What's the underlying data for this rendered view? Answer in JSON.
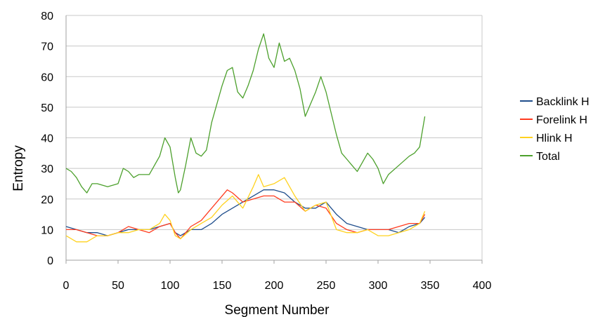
{
  "chart_data": {
    "type": "line",
    "xlabel": "Segment Number",
    "ylabel": "Entropy",
    "xlim": [
      0,
      400
    ],
    "ylim": [
      0,
      80
    ],
    "xticks": [
      "0",
      "50",
      "100",
      "150",
      "200",
      "250",
      "300",
      "350",
      "400"
    ],
    "yticks": [
      "0",
      "10",
      "20",
      "30",
      "40",
      "50",
      "60",
      "70",
      "80"
    ],
    "grid": "horizontal",
    "legend": "right",
    "series": [
      {
        "name": "Backlink H",
        "color": "#1f4e8c",
        "x": [
          0,
          10,
          20,
          30,
          40,
          50,
          60,
          70,
          80,
          90,
          100,
          105,
          110,
          120,
          130,
          140,
          150,
          160,
          170,
          180,
          190,
          200,
          210,
          220,
          230,
          240,
          250,
          260,
          270,
          280,
          290,
          300,
          310,
          320,
          330,
          340,
          345
        ],
        "y": [
          11,
          10,
          9,
          9,
          8,
          9,
          10,
          10,
          10,
          11,
          12,
          9,
          8,
          10,
          10,
          12,
          15,
          17,
          19,
          21,
          23,
          23,
          22,
          19,
          17,
          17,
          19,
          15,
          12,
          11,
          10,
          10,
          10,
          9,
          11,
          12,
          14
        ]
      },
      {
        "name": "Forelink H",
        "color": "#ff3b1f",
        "x": [
          0,
          10,
          20,
          30,
          40,
          50,
          60,
          70,
          80,
          90,
          100,
          105,
          110,
          120,
          130,
          140,
          150,
          155,
          160,
          170,
          180,
          190,
          200,
          210,
          220,
          230,
          240,
          250,
          260,
          270,
          280,
          290,
          300,
          310,
          320,
          330,
          340,
          345
        ],
        "y": [
          10,
          10,
          9,
          8,
          8,
          9,
          11,
          10,
          9,
          11,
          12,
          9,
          7,
          11,
          13,
          17,
          21,
          23,
          22,
          19,
          20,
          21,
          21,
          19,
          19,
          16,
          18,
          17,
          12,
          10,
          9,
          10,
          10,
          10,
          11,
          12,
          12,
          15
        ]
      },
      {
        "name": "Hlink H",
        "color": "#ffd21f",
        "x": [
          0,
          10,
          20,
          30,
          40,
          50,
          60,
          70,
          80,
          90,
          95,
          100,
          105,
          110,
          120,
          130,
          140,
          150,
          160,
          170,
          180,
          185,
          190,
          200,
          210,
          220,
          230,
          240,
          250,
          260,
          270,
          280,
          290,
          300,
          310,
          320,
          330,
          340,
          345
        ],
        "y": [
          8,
          6,
          6,
          8,
          8,
          9,
          9,
          10,
          10,
          12,
          15,
          13,
          8,
          7,
          10,
          12,
          14,
          18,
          21,
          17,
          24,
          28,
          24,
          25,
          27,
          21,
          16,
          18,
          19,
          10,
          9,
          9,
          10,
          8,
          8,
          9,
          10,
          12,
          16
        ]
      },
      {
        "name": "Total",
        "color": "#4ca02c",
        "x": [
          0,
          5,
          10,
          15,
          20,
          25,
          30,
          40,
          50,
          55,
          60,
          65,
          70,
          80,
          85,
          90,
          95,
          100,
          105,
          108,
          110,
          115,
          120,
          125,
          130,
          135,
          140,
          150,
          155,
          160,
          165,
          170,
          175,
          180,
          185,
          190,
          195,
          200,
          205,
          210,
          215,
          220,
          225,
          230,
          235,
          240,
          245,
          250,
          255,
          260,
          265,
          270,
          275,
          280,
          285,
          290,
          295,
          300,
          305,
          310,
          320,
          330,
          335,
          340,
          345
        ],
        "y": [
          30,
          29,
          27,
          24,
          22,
          25,
          25,
          24,
          25,
          30,
          29,
          27,
          28,
          28,
          31,
          34,
          40,
          37,
          27,
          22,
          23,
          31,
          40,
          35,
          34,
          36,
          45,
          57,
          62,
          63,
          55,
          53,
          57,
          62,
          69,
          74,
          66,
          63,
          71,
          65,
          66,
          62,
          56,
          47,
          51,
          55,
          60,
          55,
          48,
          41,
          35,
          33,
          31,
          29,
          32,
          35,
          33,
          30,
          25,
          28,
          31,
          34,
          35,
          37,
          47
        ]
      }
    ]
  }
}
